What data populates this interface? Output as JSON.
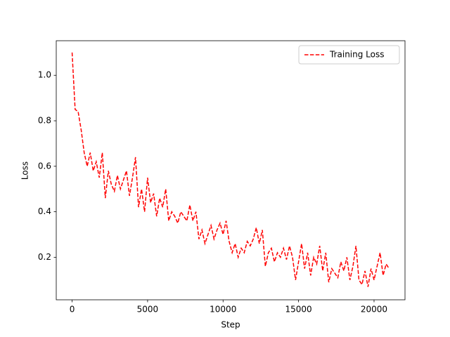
{
  "chart_data": {
    "type": "line",
    "x": [
      0,
      200,
      400,
      600,
      800,
      1000,
      1200,
      1400,
      1600,
      1800,
      2000,
      2200,
      2400,
      2600,
      2800,
      3000,
      3200,
      3400,
      3600,
      3800,
      4000,
      4200,
      4400,
      4600,
      4800,
      5000,
      5200,
      5400,
      5600,
      5800,
      6000,
      6200,
      6400,
      6600,
      6800,
      7000,
      7200,
      7400,
      7600,
      7800,
      8000,
      8200,
      8400,
      8600,
      8800,
      9000,
      9200,
      9400,
      9600,
      9800,
      10000,
      10200,
      10400,
      10600,
      10800,
      11000,
      11200,
      11400,
      11600,
      11800,
      12000,
      12200,
      12400,
      12600,
      12800,
      13000,
      13200,
      13400,
      13600,
      13800,
      14000,
      14200,
      14400,
      14600,
      14800,
      15000,
      15200,
      15400,
      15600,
      15800,
      16000,
      16200,
      16400,
      16600,
      16800,
      17000,
      17200,
      17400,
      17600,
      17800,
      18000,
      18200,
      18400,
      18600,
      18800,
      19000,
      19200,
      19400,
      19600,
      19800,
      20000,
      20200,
      20400,
      20600,
      20800,
      21000
    ],
    "series": [
      {
        "name": "Training Loss",
        "color": "#ff0000",
        "dashed": true,
        "values": [
          1.1,
          0.85,
          0.84,
          0.76,
          0.66,
          0.6,
          0.66,
          0.58,
          0.62,
          0.55,
          0.66,
          0.46,
          0.58,
          0.52,
          0.49,
          0.56,
          0.5,
          0.54,
          0.58,
          0.47,
          0.55,
          0.64,
          0.42,
          0.5,
          0.4,
          0.55,
          0.44,
          0.48,
          0.38,
          0.46,
          0.42,
          0.5,
          0.36,
          0.4,
          0.38,
          0.35,
          0.4,
          0.38,
          0.36,
          0.43,
          0.36,
          0.4,
          0.28,
          0.32,
          0.26,
          0.3,
          0.34,
          0.28,
          0.32,
          0.35,
          0.3,
          0.36,
          0.27,
          0.22,
          0.26,
          0.2,
          0.24,
          0.22,
          0.27,
          0.25,
          0.28,
          0.33,
          0.26,
          0.32,
          0.16,
          0.22,
          0.24,
          0.18,
          0.22,
          0.2,
          0.24,
          0.19,
          0.25,
          0.2,
          0.1,
          0.18,
          0.26,
          0.15,
          0.22,
          0.12,
          0.2,
          0.17,
          0.25,
          0.14,
          0.22,
          0.09,
          0.15,
          0.13,
          0.11,
          0.18,
          0.14,
          0.2,
          0.1,
          0.16,
          0.25,
          0.1,
          0.08,
          0.14,
          0.07,
          0.15,
          0.1,
          0.16,
          0.22,
          0.12,
          0.17,
          0.15
        ]
      }
    ],
    "xlabel": "Step",
    "ylabel": "Loss",
    "xlim": [
      -1050,
      22050
    ],
    "ylim": [
      0.013,
      1.152
    ],
    "xticks": [
      0,
      5000,
      10000,
      15000,
      20000
    ],
    "yticks": [
      {
        "value": 0.2,
        "label": "0.2"
      },
      {
        "value": 0.4,
        "label": "0.4"
      },
      {
        "value": 0.6,
        "label": "0.6"
      },
      {
        "value": 0.8,
        "label": "0.8"
      },
      {
        "value": 1.0,
        "label": "1.0"
      }
    ],
    "legend": "upper right"
  }
}
